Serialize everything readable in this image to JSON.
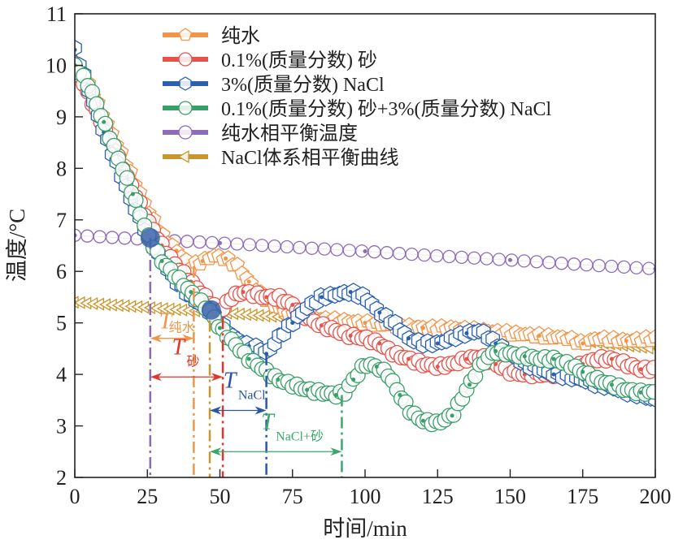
{
  "chart_data": {
    "type": "line",
    "title": "",
    "xlabel": "时间/min",
    "ylabel": "温度/°C",
    "xlim": [
      0,
      200
    ],
    "ylim": [
      2,
      11
    ],
    "xticks": [
      0,
      25,
      50,
      75,
      100,
      125,
      150,
      175,
      200
    ],
    "yticks": [
      2,
      3,
      4,
      5,
      6,
      7,
      8,
      9,
      10,
      11
    ],
    "grid": false,
    "legend_position": "top-right",
    "series": [
      {
        "name": "纯水",
        "color": "#f0954a",
        "marker": "pentagon",
        "x": [
          0,
          5,
          10,
          15,
          20,
          25,
          27,
          30,
          35,
          40,
          44,
          48,
          52,
          56,
          60,
          65,
          70,
          75,
          80,
          90,
          100,
          110,
          120,
          130,
          140,
          150,
          160,
          170,
          175,
          180,
          190,
          200
        ],
        "y": [
          10.0,
          9.6,
          9.0,
          8.4,
          7.8,
          7.2,
          7.0,
          6.7,
          6.4,
          6.1,
          6.2,
          6.3,
          6.25,
          6.1,
          5.8,
          5.5,
          5.3,
          5.15,
          5.1,
          5.05,
          5.0,
          4.95,
          4.9,
          4.9,
          4.85,
          4.8,
          4.75,
          4.7,
          4.6,
          4.7,
          4.65,
          4.7
        ]
      },
      {
        "name": "0.1%(质量分数) 砂",
        "color": "#e5534b",
        "marker": "circle",
        "x": [
          0,
          5,
          10,
          15,
          20,
          25,
          30,
          35,
          40,
          45,
          50,
          54,
          58,
          62,
          66,
          70,
          75,
          80,
          85,
          90,
          95,
          100,
          105,
          110,
          115,
          120,
          125,
          130,
          135,
          140,
          145,
          150,
          155,
          160,
          165,
          170,
          175,
          180,
          185,
          190,
          195,
          200
        ],
        "y": [
          10.0,
          9.4,
          8.8,
          8.2,
          7.6,
          7.0,
          6.5,
          6.1,
          5.8,
          5.5,
          5.2,
          5.5,
          5.6,
          5.55,
          5.5,
          5.5,
          5.35,
          5.1,
          4.95,
          4.85,
          4.75,
          4.7,
          4.6,
          4.4,
          4.3,
          4.2,
          4.15,
          4.2,
          4.3,
          4.35,
          4.2,
          4.05,
          4.0,
          4.0,
          4.0,
          4.05,
          4.2,
          4.3,
          4.3,
          4.2,
          4.1,
          4.1
        ]
      },
      {
        "name": "3%(质量分数) NaCl",
        "color": "#2b60b0",
        "marker": "hexagon",
        "x": [
          0,
          5,
          10,
          15,
          20,
          26,
          30,
          35,
          40,
          45,
          50,
          55,
          60,
          64,
          66,
          70,
          75,
          80,
          85,
          90,
          95,
          100,
          105,
          110,
          115,
          120,
          125,
          130,
          135,
          140,
          145,
          150,
          155,
          160,
          165,
          170,
          175,
          180,
          185,
          190,
          195,
          200
        ],
        "y": [
          10.3,
          9.5,
          8.7,
          8.0,
          7.3,
          6.6,
          6.2,
          5.8,
          5.5,
          5.3,
          5.0,
          4.7,
          4.55,
          4.5,
          4.4,
          4.7,
          5.0,
          5.3,
          5.5,
          5.55,
          5.6,
          5.5,
          5.2,
          5.0,
          4.7,
          4.6,
          4.6,
          4.7,
          4.8,
          4.85,
          4.6,
          4.4,
          4.2,
          4.1,
          4.0,
          3.95,
          3.9,
          3.8,
          3.75,
          3.65,
          3.6,
          3.5
        ]
      },
      {
        "name": "0.1%(质量分数) 砂+3%(质量分数) NaCl",
        "color": "#3a9e68",
        "marker": "circle",
        "x": [
          0,
          5,
          10,
          15,
          20,
          26,
          30,
          35,
          40,
          47,
          50,
          55,
          60,
          65,
          70,
          75,
          80,
          85,
          90,
          93,
          96,
          100,
          104,
          108,
          112,
          116,
          120,
          125,
          130,
          133,
          136,
          140,
          145,
          150,
          155,
          160,
          165,
          170,
          175,
          180,
          185,
          190,
          195,
          200
        ],
        "y": [
          10.0,
          9.6,
          8.9,
          8.2,
          7.5,
          6.6,
          6.2,
          5.9,
          5.6,
          5.2,
          4.9,
          4.6,
          4.3,
          4.1,
          3.9,
          3.8,
          3.7,
          3.65,
          3.6,
          3.65,
          3.9,
          4.2,
          4.15,
          4.0,
          3.6,
          3.25,
          3.1,
          3.05,
          3.2,
          3.5,
          3.8,
          4.2,
          4.45,
          4.4,
          4.35,
          4.3,
          4.3,
          4.2,
          4.05,
          3.9,
          3.8,
          3.7,
          3.65,
          3.65
        ]
      },
      {
        "name": "纯水相平衡温度",
        "color": "#8c6bb8",
        "marker": "circle",
        "x": [
          0,
          25,
          50,
          75,
          100,
          125,
          150,
          175,
          200
        ],
        "y": [
          6.7,
          6.62,
          6.55,
          6.47,
          6.39,
          6.3,
          6.22,
          6.13,
          6.05
        ]
      },
      {
        "name": "NaCl体系相平衡曲线",
        "color": "#c8962c",
        "marker": "triangle-left",
        "x": [
          0,
          25,
          50,
          75,
          100,
          125,
          150,
          175,
          200
        ],
        "y": [
          5.4,
          5.3,
          5.2,
          5.1,
          5.0,
          4.9,
          4.78,
          4.65,
          4.5
        ]
      }
    ],
    "highlight_points": [
      {
        "x": 26,
        "y": 6.65,
        "color": "#3a62a8"
      },
      {
        "x": 47,
        "y": 5.25,
        "color": "#3a62a8"
      }
    ],
    "vlines": [
      {
        "x": 26,
        "color": "#8c6bb8",
        "y_top": 6.65
      },
      {
        "x": 41,
        "color": "#f0954a",
        "y_top": 6.1
      },
      {
        "x": 46.5,
        "color": "#c8962c",
        "y_top": 5.05
      },
      {
        "x": 51,
        "color": "#e5342b",
        "y_top": 5.1
      },
      {
        "x": 66,
        "color": "#2b56a8",
        "y_top": 4.4
      },
      {
        "x": 92,
        "color": "#3aa76a",
        "y_top": 3.6
      }
    ],
    "annotations": [
      {
        "label": "T",
        "sub": "纯水",
        "color": "#f0954a",
        "x_from": 26,
        "x_to": 41,
        "y": 4.7
      },
      {
        "label": "T",
        "sub": "砂",
        "color": "#e5342b",
        "x_from": 26,
        "x_to": 51,
        "y": 3.95
      },
      {
        "label": "T",
        "sub": "NaCl",
        "color": "#2b56a8",
        "x_from": 46.5,
        "x_to": 66,
        "y": 3.3
      },
      {
        "label": "T",
        "sub": "NaCl+砂",
        "color": "#3aa76a",
        "x_from": 46.5,
        "x_to": 92,
        "y": 2.5
      }
    ]
  }
}
